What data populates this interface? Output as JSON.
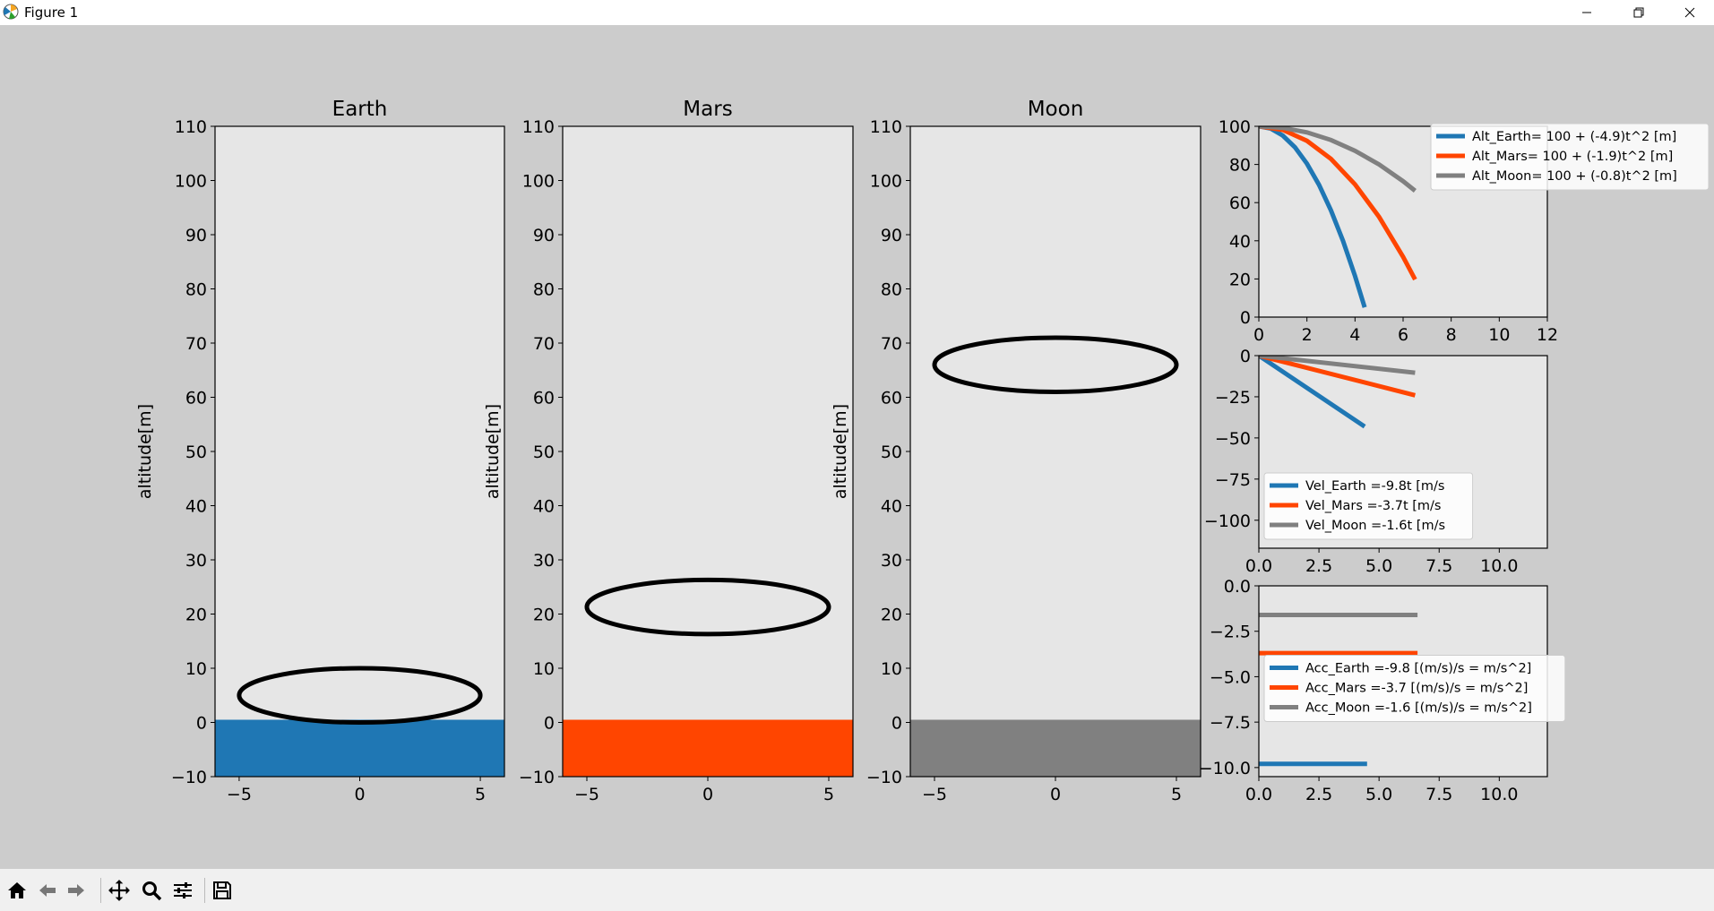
{
  "window": {
    "title": "Figure 1"
  },
  "toolbar": {
    "items": [
      "home-icon",
      "back-icon",
      "forward-icon",
      "pan-icon",
      "zoom-icon",
      "configure-icon",
      "save-icon"
    ]
  },
  "colors": {
    "earth": "#1f77b4",
    "mars": "#ff4500",
    "moon": "#808080",
    "axes_bg": "#e6e6e6",
    "figure_bg": "#cccccc"
  },
  "chart_data": [
    {
      "type": "scatter",
      "title": "Earth",
      "ylabel": "altitude[m]",
      "xlim": [
        -6,
        6
      ],
      "ylim": [
        -10,
        110
      ],
      "xticks": [
        "−5",
        "0",
        "5"
      ],
      "yticks": [
        "−10",
        "0",
        "10",
        "20",
        "30",
        "40",
        "50",
        "60",
        "70",
        "80",
        "90",
        "100",
        "110"
      ],
      "ground": {
        "color": "#1f77b4",
        "top": 0
      },
      "body": {
        "cx": 0,
        "cy": 5,
        "rx": 5,
        "ry": 5
      }
    },
    {
      "type": "scatter",
      "title": "Mars",
      "ylabel": "altitude[m]",
      "xlim": [
        -6,
        6
      ],
      "ylim": [
        -10,
        110
      ],
      "xticks": [
        "−5",
        "0",
        "5"
      ],
      "yticks": [
        "−10",
        "0",
        "10",
        "20",
        "30",
        "40",
        "50",
        "60",
        "70",
        "80",
        "90",
        "100",
        "110"
      ],
      "ground": {
        "color": "#ff4500",
        "top": 0
      },
      "body": {
        "cx": 0,
        "cy": 21.3,
        "rx": 5,
        "ry": 5
      }
    },
    {
      "type": "scatter",
      "title": "Moon",
      "ylabel": "altitude[m]",
      "xlim": [
        -6,
        6
      ],
      "ylim": [
        -10,
        110
      ],
      "xticks": [
        "−5",
        "0",
        "5"
      ],
      "yticks": [
        "−10",
        "0",
        "10",
        "20",
        "30",
        "40",
        "50",
        "60",
        "70",
        "80",
        "90",
        "100",
        "110"
      ],
      "ground": {
        "color": "#808080",
        "top": 0
      },
      "body": {
        "cx": 0,
        "cy": 66,
        "rx": 5,
        "ry": 5
      }
    },
    {
      "type": "line",
      "xlim": [
        0,
        12
      ],
      "ylim": [
        0,
        100
      ],
      "xticks": [
        "0",
        "2",
        "4",
        "6",
        "8",
        "10",
        "12"
      ],
      "yticks": [
        "0",
        "20",
        "40",
        "60",
        "80",
        "100"
      ],
      "legend": "upper-right",
      "series": [
        {
          "name": "Alt_Earth= 100 + (-4.9)t^2 [m]",
          "color": "#1f77b4",
          "x": [
            0,
            0.5,
            1,
            1.5,
            2,
            2.5,
            3,
            3.5,
            4,
            4.4
          ],
          "y": [
            100,
            98.8,
            95.1,
            89,
            80.4,
            69.4,
            55.9,
            40,
            21.6,
            5.1
          ]
        },
        {
          "name": "Alt_Mars= 100 + (-1.9)t^2 [m]",
          "color": "#ff4500",
          "x": [
            0,
            1,
            2,
            3,
            4,
            5,
            6,
            6.5
          ],
          "y": [
            100,
            98.1,
            92.4,
            82.9,
            69.6,
            52.5,
            31.6,
            19.7
          ]
        },
        {
          "name": "Alt_Moon= 100 + (-0.8)t^2 [m]",
          "color": "#808080",
          "x": [
            0,
            1,
            2,
            3,
            4,
            5,
            6,
            6.5
          ],
          "y": [
            100,
            99.2,
            96.8,
            92.8,
            87.2,
            80,
            71.2,
            66.2
          ]
        }
      ]
    },
    {
      "type": "line",
      "xlim": [
        0,
        12
      ],
      "ylim": [
        -117,
        0
      ],
      "xticks": [
        "0.0",
        "2.5",
        "5.0",
        "7.5",
        "10.0"
      ],
      "yticks": [
        "−100",
        "−75",
        "−50",
        "−25",
        "0"
      ],
      "legend": "lower-left",
      "series": [
        {
          "name": "Vel_Earth =-9.8t [m/s",
          "color": "#1f77b4",
          "x": [
            0,
            4.4
          ],
          "y": [
            0,
            -43.1
          ]
        },
        {
          "name": "Vel_Mars =-3.7t [m/s",
          "color": "#ff4500",
          "x": [
            0,
            6.5
          ],
          "y": [
            0,
            -24.1
          ]
        },
        {
          "name": "Vel_Moon =-1.6t [m/s",
          "color": "#808080",
          "x": [
            0,
            6.5
          ],
          "y": [
            0,
            -10.4
          ]
        }
      ]
    },
    {
      "type": "line",
      "xlim": [
        0,
        12
      ],
      "ylim": [
        -10.5,
        0
      ],
      "xticks": [
        "0.0",
        "2.5",
        "5.0",
        "7.5",
        "10.0"
      ],
      "yticks": [
        "−10.0",
        "−7.5",
        "−5.0",
        "−2.5",
        "0.0"
      ],
      "legend": "center-left",
      "series": [
        {
          "name": "Acc_Earth =-9.8 [(m/s)/s = m/s^2]",
          "color": "#1f77b4",
          "x": [
            0,
            4.5
          ],
          "y": [
            -9.8,
            -9.8
          ]
        },
        {
          "name": "Acc_Mars =-3.7 [(m/s)/s = m/s^2]",
          "color": "#ff4500",
          "x": [
            0,
            6.6
          ],
          "y": [
            -3.7,
            -3.7
          ]
        },
        {
          "name": "Acc_Moon =-1.6 [(m/s)/s = m/s^2]",
          "color": "#808080",
          "x": [
            0,
            6.6
          ],
          "y": [
            -1.6,
            -1.6
          ]
        }
      ]
    }
  ]
}
